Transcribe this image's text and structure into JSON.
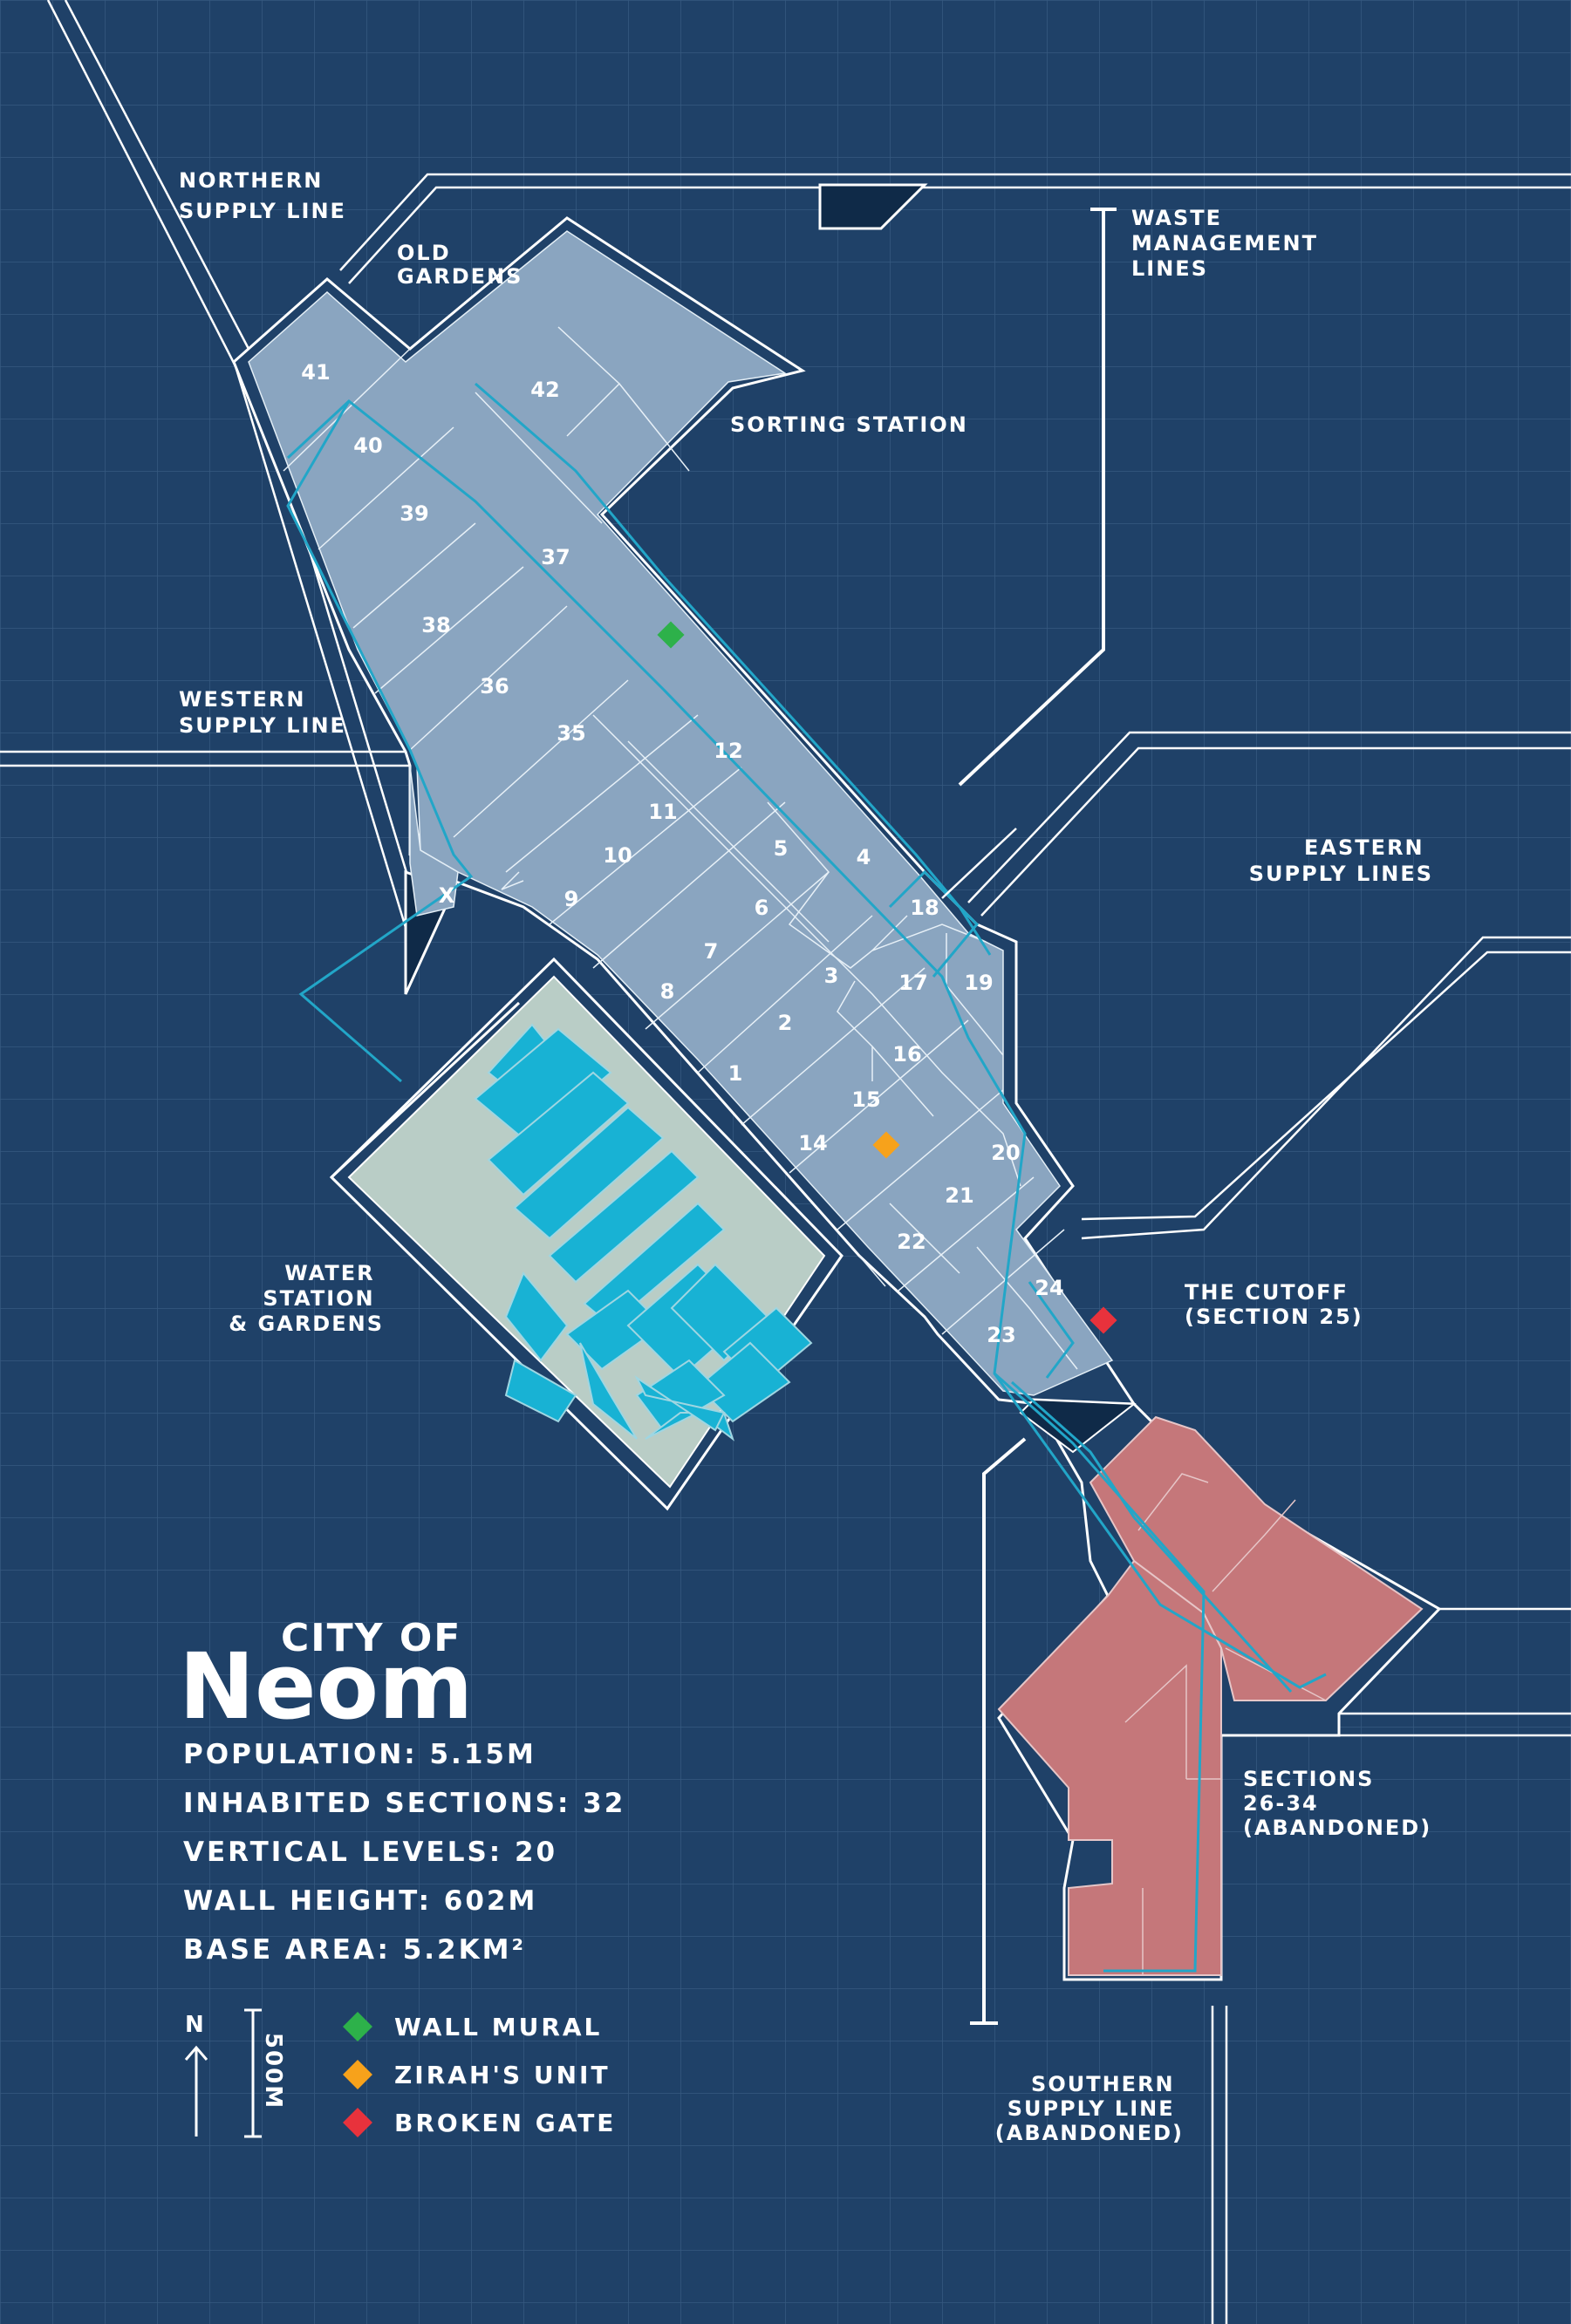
{
  "title": {
    "small": "CITY OF",
    "large": "Neom"
  },
  "stats": [
    "POPULATION: 5.15M",
    "INHABITED SECTIONS: 32",
    "VERTICAL LEVELS: 20",
    "WALL HEIGHT: 602M",
    "BASE AREA: 5.2KM²"
  ],
  "compass": {
    "north": "N",
    "scale": "500M"
  },
  "legend": [
    {
      "label": "WALL MURAL",
      "color": "#2db14a"
    },
    {
      "label": "ZIRAH'S UNIT",
      "color": "#f7a21b"
    },
    {
      "label": "BROKEN GATE",
      "color": "#e8323c"
    }
  ],
  "labels": {
    "northern": [
      "NORTHERN",
      "SUPPLY LINE"
    ],
    "old_gardens": [
      "OLD",
      "GARDENS"
    ],
    "sorting": "SORTING STATION",
    "waste": [
      "WASTE",
      "MANAGEMENT",
      "LINES"
    ],
    "western": [
      "WESTERN",
      "SUPPLY LINE"
    ],
    "eastern": [
      "EASTERN",
      "SUPPLY LINES"
    ],
    "water": [
      "WATER",
      "STATION",
      "& GARDENS"
    ],
    "cutoff": [
      "THE CUTOFF",
      "(SECTION 25)"
    ],
    "abandoned": [
      "SECTIONS",
      "26-34",
      "(ABANDONED)"
    ],
    "southern": [
      "SOUTHERN",
      "SUPPLY LINE",
      "(ABANDONED)"
    ]
  },
  "sections": [
    "41",
    "40",
    "42",
    "39",
    "37",
    "38",
    "36",
    "35",
    "12",
    "11",
    "5",
    "4",
    "10",
    "9",
    "6",
    "18",
    "X",
    "7",
    "3",
    "17",
    "19",
    "8",
    "2",
    "16",
    "1",
    "15",
    "20",
    "14",
    "21",
    "22",
    "24",
    "23"
  ],
  "colors": {
    "background": "#1f4168",
    "grid": "#35577e",
    "city": "#8aa5c0",
    "gardens": "#b9cdc6",
    "buildings": "#18b2d4",
    "abandoned": "#c5777a",
    "route": "#22a6c8"
  }
}
